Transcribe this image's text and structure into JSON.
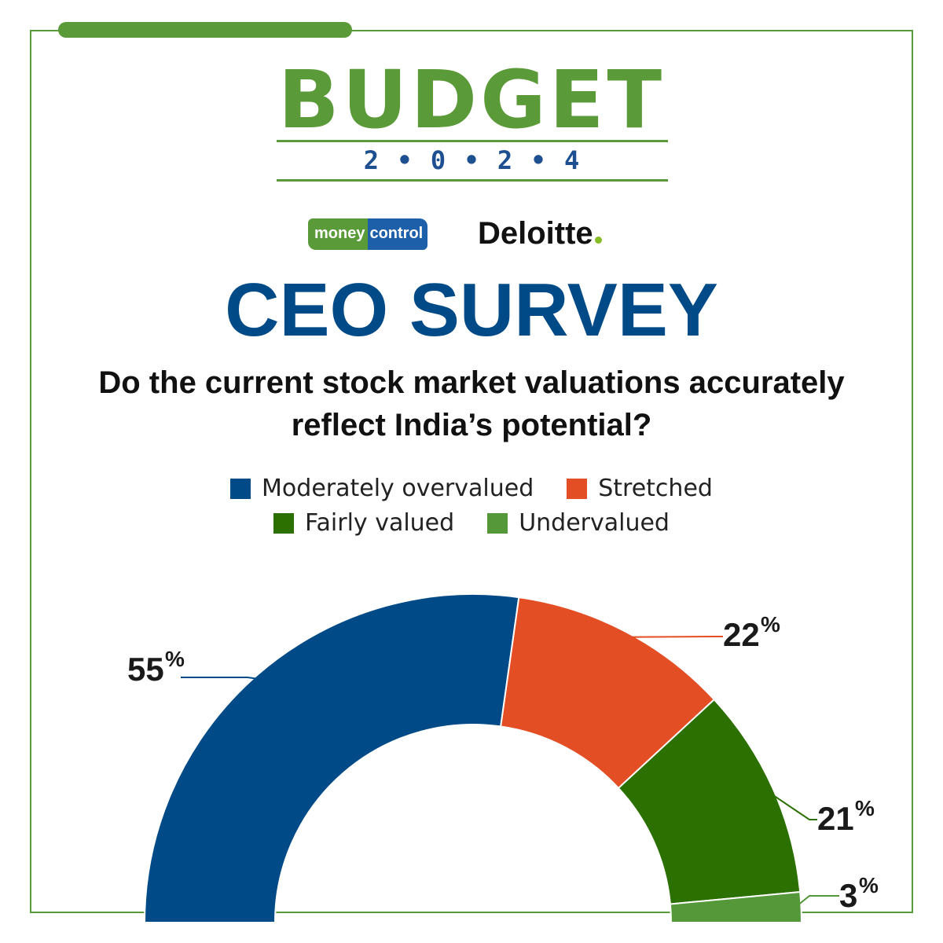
{
  "header": {
    "budget_word": "BUDGET",
    "budget_year": "2 • 0 • 2 • 4"
  },
  "logos": {
    "moneycontrol_part1": "money",
    "moneycontrol_part2": "control",
    "deloitte": "Deloitte"
  },
  "colors": {
    "frame_green": "#5b9a38",
    "title_blue": "#004b87"
  },
  "chart_data": {
    "type": "pie",
    "variant": "semi-donut",
    "title": "CEO SURVEY",
    "subtitle": "Do the current stock market valuations accurately reflect India’s potential?",
    "legend_placement": "top-center",
    "unit": "%",
    "categories": [
      "Moderately overvalued",
      "Stretched",
      "Fairly valued",
      "Undervalued"
    ],
    "values": [
      55,
      22,
      21,
      3
    ],
    "labels": [
      "55",
      "22",
      "21",
      "3"
    ],
    "colors": [
      "#004a87",
      "#e34e24",
      "#2b7000",
      "#55983a"
    ]
  }
}
